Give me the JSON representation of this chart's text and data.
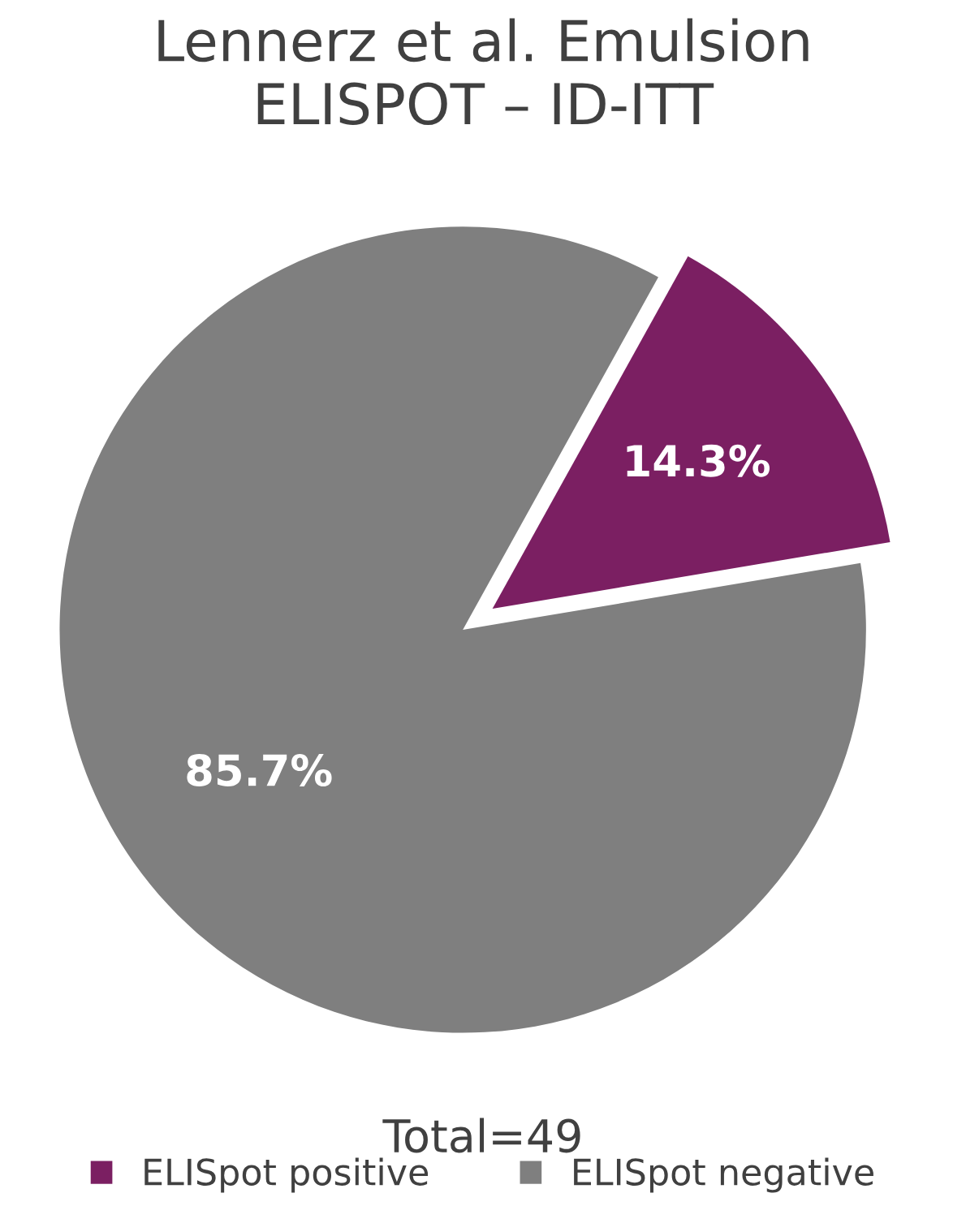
{
  "chart_data": {
    "type": "pie",
    "title": "Lennerz et al. Emulsion\nELISPOT – ID-ITT",
    "categories": [
      "ELISpot positive",
      "ELISpot negative"
    ],
    "values": [
      14.3,
      85.7
    ],
    "colors": [
      "#7b1f62",
      "#7f7f7f"
    ],
    "value_labels": [
      "14.3%",
      "85.7%"
    ],
    "annotations": [
      "Total=49"
    ],
    "legend": "bottom"
  }
}
